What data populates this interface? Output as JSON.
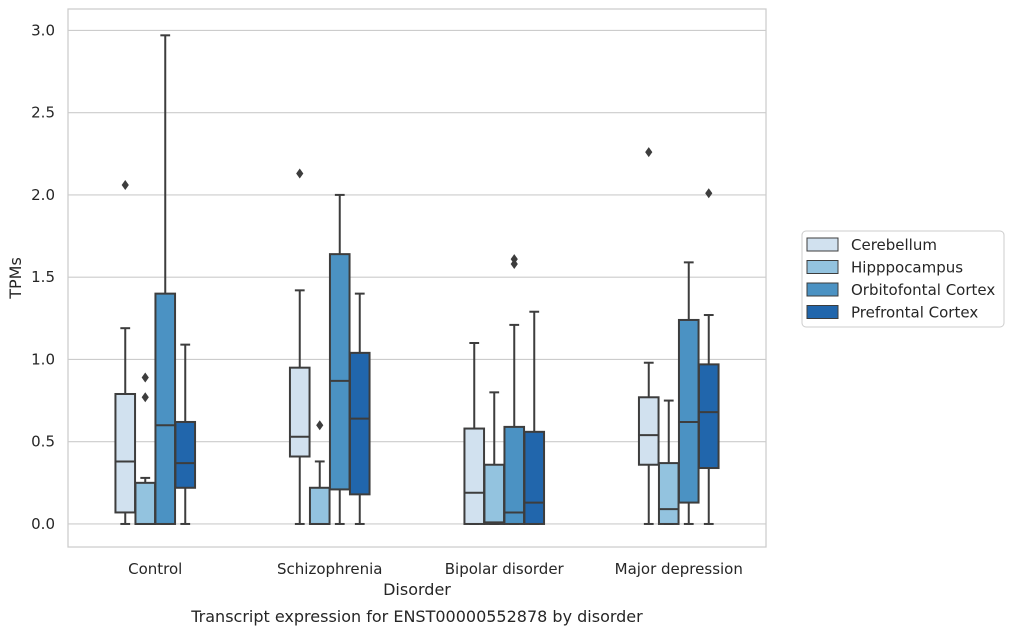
{
  "chart_data": {
    "type": "box",
    "caption": "Transcript expression for ENST00000552878 by disorder",
    "xlabel": "Disorder",
    "ylabel": "TPMs",
    "ylim": [
      -0.14,
      3.13
    ],
    "yticks": [
      0.0,
      0.5,
      1.0,
      1.5,
      2.0,
      2.5,
      3.0
    ],
    "ytick_labels": [
      "0.0",
      "0.5",
      "1.0",
      "1.5",
      "2.0",
      "2.5",
      "3.0"
    ],
    "grid": "horizontal",
    "legend_position": "right",
    "categories": [
      "Control",
      "Schizophrenia",
      "Bipolar disorder",
      "Major depression"
    ],
    "series": [
      {
        "name": "Cerebellum",
        "color": "#d1e1ef",
        "boxes": [
          {
            "whisker_low": 0.0,
            "q1": 0.07,
            "median": 0.38,
            "q3": 0.79,
            "whisker_high": 1.19,
            "outliers": [
              2.06
            ]
          },
          {
            "whisker_low": 0.0,
            "q1": 0.41,
            "median": 0.53,
            "q3": 0.95,
            "whisker_high": 1.42,
            "outliers": [
              2.13
            ]
          },
          {
            "whisker_low": 0.0,
            "q1": 0.0,
            "median": 0.19,
            "q3": 0.58,
            "whisker_high": 1.1,
            "outliers": []
          },
          {
            "whisker_low": 0.0,
            "q1": 0.36,
            "median": 0.54,
            "q3": 0.77,
            "whisker_high": 0.98,
            "outliers": [
              2.26
            ]
          }
        ]
      },
      {
        "name": "Hipppocampus",
        "color": "#93c3df",
        "boxes": [
          {
            "whisker_low": 0.0,
            "q1": 0.0,
            "median": 0.0,
            "q3": 0.25,
            "whisker_high": 0.28,
            "outliers": [
              0.77,
              0.89
            ]
          },
          {
            "whisker_low": 0.0,
            "q1": 0.0,
            "median": 0.0,
            "q3": 0.22,
            "whisker_high": 0.38,
            "outliers": [
              0.6
            ]
          },
          {
            "whisker_low": 0.0,
            "q1": 0.0,
            "median": 0.01,
            "q3": 0.36,
            "whisker_high": 0.8,
            "outliers": []
          },
          {
            "whisker_low": 0.0,
            "q1": 0.0,
            "median": 0.09,
            "q3": 0.37,
            "whisker_high": 0.75,
            "outliers": []
          }
        ]
      },
      {
        "name": "Orbitofontal Cortex",
        "color": "#4b92c3",
        "boxes": [
          {
            "whisker_low": 0.0,
            "q1": 0.0,
            "median": 0.6,
            "q3": 1.4,
            "whisker_high": 2.97,
            "outliers": []
          },
          {
            "whisker_low": 0.0,
            "q1": 0.21,
            "median": 0.87,
            "q3": 1.64,
            "whisker_high": 2.0,
            "outliers": []
          },
          {
            "whisker_low": 0.0,
            "q1": 0.0,
            "median": 0.07,
            "q3": 0.59,
            "whisker_high": 1.21,
            "outliers": [
              1.58,
              1.61
            ]
          },
          {
            "whisker_low": 0.0,
            "q1": 0.13,
            "median": 0.62,
            "q3": 1.24,
            "whisker_high": 1.59,
            "outliers": []
          }
        ]
      },
      {
        "name": "Prefrontal Cortex",
        "color": "#2166ac",
        "boxes": [
          {
            "whisker_low": 0.0,
            "q1": 0.22,
            "median": 0.37,
            "q3": 0.62,
            "whisker_high": 1.09,
            "outliers": []
          },
          {
            "whisker_low": 0.0,
            "q1": 0.18,
            "median": 0.64,
            "q3": 1.04,
            "whisker_high": 1.4,
            "outliers": []
          },
          {
            "whisker_low": 0.0,
            "q1": 0.0,
            "median": 0.13,
            "q3": 0.56,
            "whisker_high": 1.29,
            "outliers": []
          },
          {
            "whisker_low": 0.0,
            "q1": 0.34,
            "median": 0.68,
            "q3": 0.97,
            "whisker_high": 1.27,
            "outliers": [
              2.01
            ]
          }
        ]
      }
    ]
  }
}
